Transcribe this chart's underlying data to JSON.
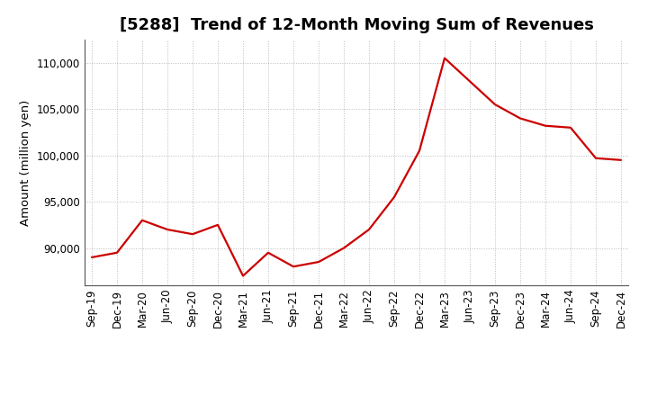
{
  "title": "[5288]  Trend of 12-Month Moving Sum of Revenues",
  "ylabel": "Amount (million yen)",
  "line_color": "#cc0000",
  "background_color": "#ffffff",
  "grid_color": "#bbbbbb",
  "xlabels": [
    "Sep-19",
    "Dec-19",
    "Mar-20",
    "Jun-20",
    "Sep-20",
    "Dec-20",
    "Mar-21",
    "Jun-21",
    "Sep-21",
    "Dec-21",
    "Mar-22",
    "Jun-22",
    "Sep-22",
    "Dec-22",
    "Mar-23",
    "Jun-23",
    "Sep-23",
    "Dec-23",
    "Mar-24",
    "Jun-24",
    "Sep-24",
    "Dec-24"
  ],
  "values": [
    89000,
    89500,
    93000,
    92000,
    91500,
    92500,
    87000,
    89500,
    88000,
    88500,
    90000,
    92000,
    95500,
    100500,
    110500,
    108000,
    105500,
    104000,
    103200,
    103000,
    99700,
    99500
  ],
  "ylim": [
    86000,
    112500
  ],
  "yticks": [
    90000,
    95000,
    100000,
    105000,
    110000
  ],
  "title_fontsize": 13,
  "axis_fontsize": 9.5,
  "tick_fontsize": 8.5
}
